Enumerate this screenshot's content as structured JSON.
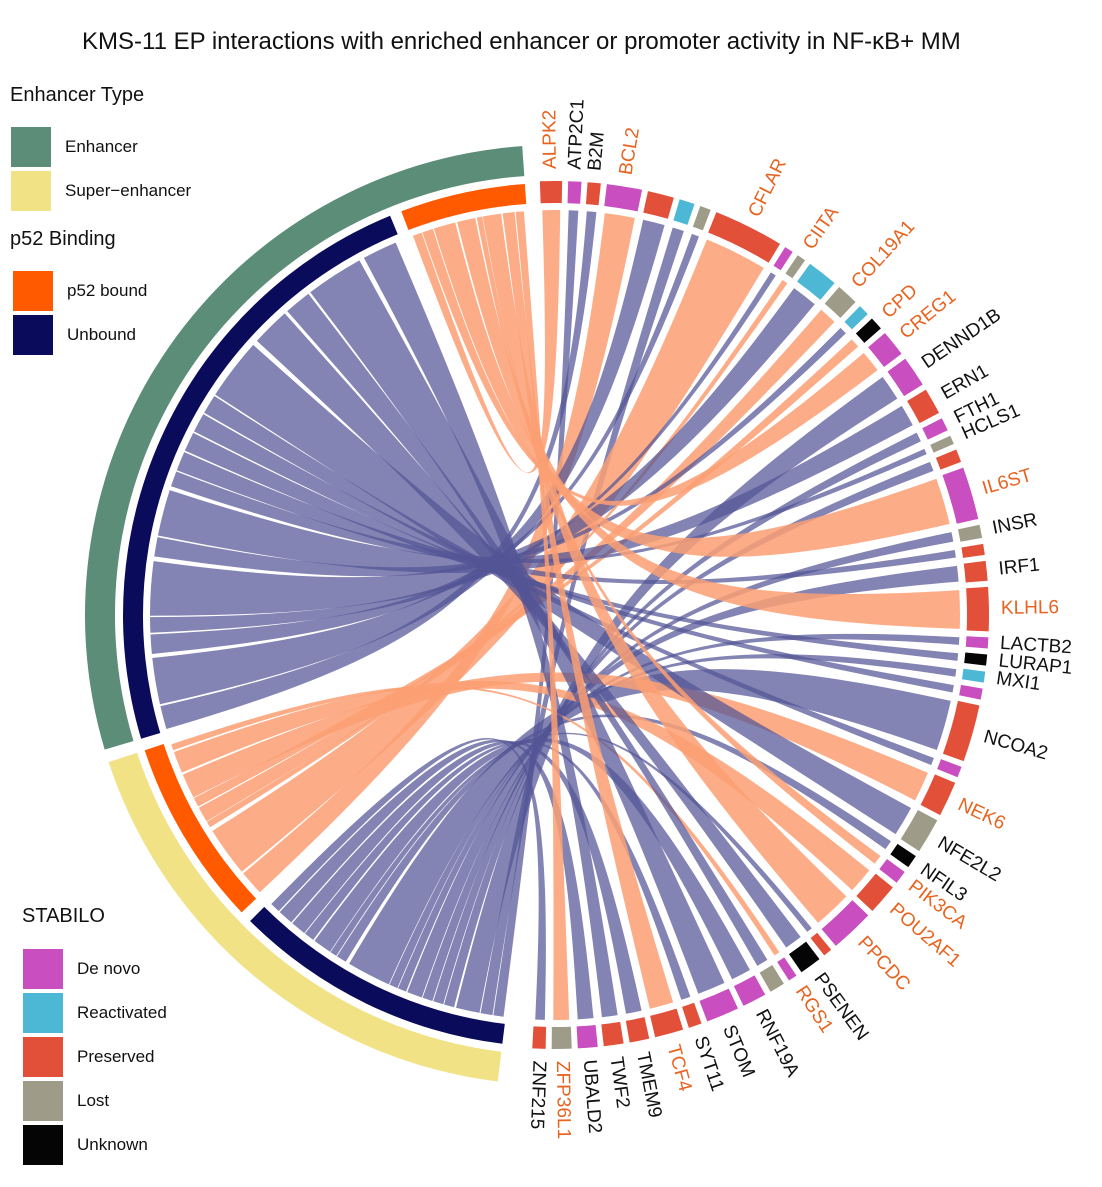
{
  "title": "KMS-11 EP interactions with enriched enhancer or promoter activity in NF-κB+ MM",
  "colors": {
    "enhancer": "#5b8d78",
    "super_enhancer": "#f1e286",
    "p52_bound": "#ff5a00",
    "unbound": "#0b0b5c",
    "de_novo": "#c94fc0",
    "reactivated": "#4db8d6",
    "preserved": "#e2503a",
    "lost": "#9e9c88",
    "unknown": "#050505",
    "link_p52": "#fc9f73",
    "link_unbound": "#535596",
    "label_highlight": "#e8631f",
    "label_normal": "#111111"
  },
  "legends": {
    "enhancer_type": {
      "title": "Enhancer Type",
      "items": [
        {
          "label": "Enhancer",
          "color": "#5b8d78"
        },
        {
          "label": "Super−enhancer",
          "color": "#f1e286"
        }
      ]
    },
    "p52_binding": {
      "title": "p52 Binding",
      "items": [
        {
          "label": "p52 bound",
          "color": "#ff5a00"
        },
        {
          "label": "Unbound",
          "color": "#0b0b5c"
        }
      ]
    },
    "stabilo": {
      "title": "STABILO",
      "items": [
        {
          "label": "De novo",
          "color": "#c94fc0"
        },
        {
          "label": "Reactivated",
          "color": "#4db8d6"
        },
        {
          "label": "Preserved",
          "color": "#e2503a"
        },
        {
          "label": "Lost",
          "color": "#9e9c88"
        },
        {
          "label": "Unknown",
          "color": "#050505"
        }
      ]
    }
  },
  "diagram": {
    "enhancer_groups": [
      {
        "type": "Enhancer",
        "binding": "p52 bound",
        "size": 4
      },
      {
        "type": "Enhancer",
        "binding": "Unbound",
        "size": 20
      },
      {
        "type": "Super−enhancer",
        "binding": "p52 bound",
        "size": 6
      },
      {
        "type": "Super−enhancer",
        "binding": "Unbound",
        "size": 9
      }
    ],
    "genes": [
      {
        "name": "ALPK2",
        "stabilo": "Preserved",
        "p52": true,
        "size": 1.0
      },
      {
        "name": "ATP2C1",
        "stabilo": "De novo",
        "p52": false,
        "size": 0.6
      },
      {
        "name": "B2M",
        "stabilo": "Preserved",
        "p52": false,
        "size": 0.6
      },
      {
        "name": "BCL2",
        "stabilo": "De novo",
        "p52": true,
        "size": 1.6
      },
      {
        "name": "",
        "stabilo": "Preserved",
        "p52": false,
        "size": 1.2
      },
      {
        "name": "",
        "stabilo": "Reactivated",
        "p52": false,
        "size": 0.7
      },
      {
        "name": "",
        "stabilo": "Lost",
        "p52": false,
        "size": 0.5
      },
      {
        "name": "CFLAR",
        "stabilo": "Preserved",
        "p52": true,
        "size": 3.2
      },
      {
        "name": "",
        "stabilo": "De novo",
        "p52": false,
        "size": 0.4
      },
      {
        "name": "CIITA",
        "stabilo": "Lost",
        "p52": true,
        "size": 0.4
      },
      {
        "name": "",
        "stabilo": "Reactivated",
        "p52": false,
        "size": 1.4
      },
      {
        "name": "COL19A1",
        "stabilo": "Lost",
        "p52": true,
        "size": 1.0
      },
      {
        "name": "",
        "stabilo": "Reactivated",
        "p52": false,
        "size": 0.5
      },
      {
        "name": "CPD",
        "stabilo": "Unknown",
        "p52": true,
        "size": 0.6
      },
      {
        "name": "CREG1",
        "stabilo": "De novo",
        "p52": true,
        "size": 1.2
      },
      {
        "name": "DENND1B",
        "stabilo": "De novo",
        "p52": false,
        "size": 1.4
      },
      {
        "name": "ERN1",
        "stabilo": "Preserved",
        "p52": false,
        "size": 1.2
      },
      {
        "name": "FTH1",
        "stabilo": "De novo",
        "p52": false,
        "size": 0.6
      },
      {
        "name": "HCLS1",
        "stabilo": "Lost",
        "p52": false,
        "size": 0.4
      },
      {
        "name": "",
        "stabilo": "Preserved",
        "p52": false,
        "size": 0.6
      },
      {
        "name": "IL6ST",
        "stabilo": "De novo",
        "p52": true,
        "size": 2.4
      },
      {
        "name": "INSR",
        "stabilo": "Lost",
        "p52": false,
        "size": 0.6
      },
      {
        "name": "",
        "stabilo": "Preserved",
        "p52": false,
        "size": 0.5
      },
      {
        "name": "IRF1",
        "stabilo": "Preserved",
        "p52": false,
        "size": 0.9
      },
      {
        "name": "KLHL6",
        "stabilo": "Preserved",
        "p52": true,
        "size": 2.0
      },
      {
        "name": "LACTB2",
        "stabilo": "De novo",
        "p52": false,
        "size": 0.5
      },
      {
        "name": "LURAP1",
        "stabilo": "Unknown",
        "p52": false,
        "size": 0.5
      },
      {
        "name": "MXI1",
        "stabilo": "Reactivated",
        "p52": false,
        "size": 0.5
      },
      {
        "name": "",
        "stabilo": "De novo",
        "p52": false,
        "size": 0.5
      },
      {
        "name": "NCOA2",
        "stabilo": "Preserved",
        "p52": false,
        "size": 2.6
      },
      {
        "name": "",
        "stabilo": "De novo",
        "p52": false,
        "size": 0.5
      },
      {
        "name": "NEK6",
        "stabilo": "Preserved",
        "p52": true,
        "size": 1.6
      },
      {
        "name": "NFE2L2",
        "stabilo": "Lost",
        "p52": false,
        "size": 1.6
      },
      {
        "name": "NFIL3",
        "stabilo": "Unknown",
        "p52": false,
        "size": 0.6
      },
      {
        "name": "PIK3CA",
        "stabilo": "De novo",
        "p52": true,
        "size": 0.6
      },
      {
        "name": "POU2AF1",
        "stabilo": "Preserved",
        "p52": true,
        "size": 1.4
      },
      {
        "name": "PPCDC",
        "stabilo": "De novo",
        "p52": true,
        "size": 2.0
      },
      {
        "name": "",
        "stabilo": "Preserved",
        "p52": false,
        "size": 0.4
      },
      {
        "name": "PSENEN",
        "stabilo": "Unknown",
        "p52": false,
        "size": 1.0
      },
      {
        "name": "RGS1",
        "stabilo": "De novo",
        "p52": true,
        "size": 0.4
      },
      {
        "name": "",
        "stabilo": "Lost",
        "p52": false,
        "size": 0.7
      },
      {
        "name": "RNF19A",
        "stabilo": "De novo",
        "p52": false,
        "size": 1.1
      },
      {
        "name": "STOM",
        "stabilo": "De novo",
        "p52": false,
        "size": 1.5
      },
      {
        "name": "SYT11",
        "stabilo": "Preserved",
        "p52": false,
        "size": 0.6
      },
      {
        "name": "TCF4",
        "stabilo": "Preserved",
        "p52": true,
        "size": 1.3
      },
      {
        "name": "TMEM9",
        "stabilo": "Preserved",
        "p52": false,
        "size": 0.9
      },
      {
        "name": "TWF2",
        "stabilo": "Preserved",
        "p52": false,
        "size": 0.9
      },
      {
        "name": "UBALD2",
        "stabilo": "De novo",
        "p52": false,
        "size": 0.9
      },
      {
        "name": "ZFP36L1",
        "stabilo": "Lost",
        "p52": true,
        "size": 0.9
      },
      {
        "name": "ZNF215",
        "stabilo": "Preserved",
        "p52": false,
        "size": 0.6
      }
    ]
  }
}
